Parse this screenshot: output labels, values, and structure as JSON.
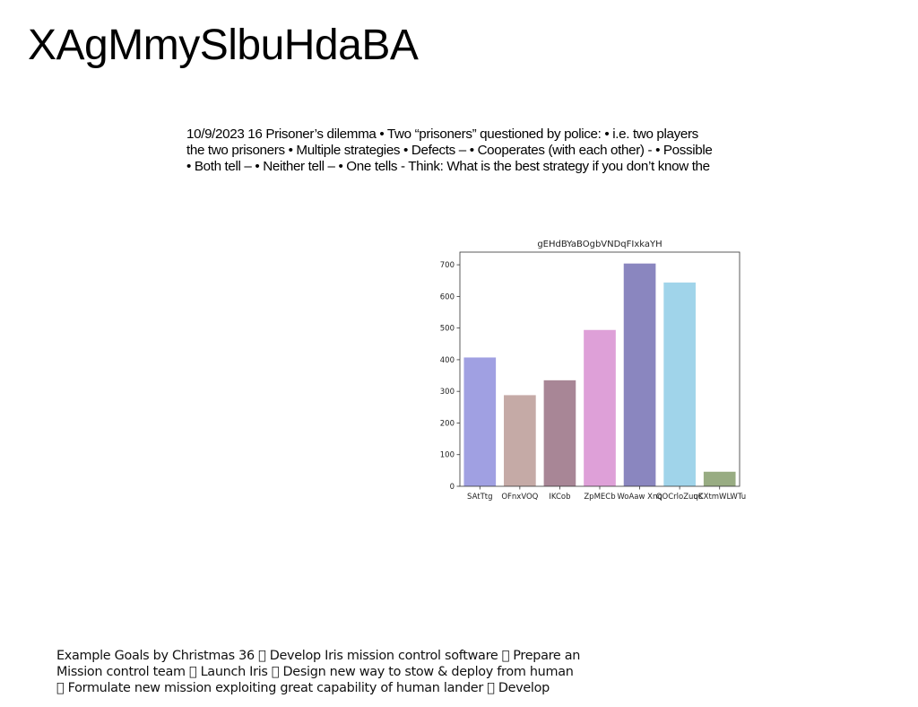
{
  "page": {
    "title": "XAgMmySlbuHdaBA"
  },
  "text_block": {
    "lines": [
      "10/9/2023 16 Prisoner’s dilemma • Two “prisoners” questioned by police: • i.e. two players",
      "the two prisoners • Multiple strategies • Defects – • Cooperates (with each other) - • Possible",
      "• Both tell – • Neither tell – • One tells - Think: What is the best strategy if you don’t know the"
    ]
  },
  "chart_data": {
    "type": "bar",
    "title": "gEHdBYaBOgbVNDqFIxkaYH",
    "xlabel": "",
    "ylabel": "",
    "categories": [
      "SAtTtg",
      "OFnxVOQ",
      "IKCob",
      "ZpMECb",
      "WoAaw Xnq",
      "QOCrloZuqK",
      "uCXtmWLWTu"
    ],
    "values": [
      407,
      288,
      335,
      494,
      704,
      644,
      46
    ],
    "colors": [
      "#a0a0e2",
      "#c5aaa6",
      "#a88696",
      "#dea0d8",
      "#8a86bf",
      "#a0d4ea",
      "#98ac82"
    ],
    "ylim": [
      0,
      740
    ],
    "yticks": [
      0,
      100,
      200,
      300,
      400,
      500,
      600,
      700
    ],
    "grid": false,
    "legend": "none"
  },
  "bottom_block": {
    "lines": [
      "Example Goals by Christmas 36 \u0000 Develop Iris mission control software \u0000 Prepare an",
      "Mission control team \u0000 Launch Iris \u0000 Design new way to stow & deploy from human",
      "\u0000 Formulate new mission exploiting great capability of human lander \u0000 Develop"
    ]
  }
}
